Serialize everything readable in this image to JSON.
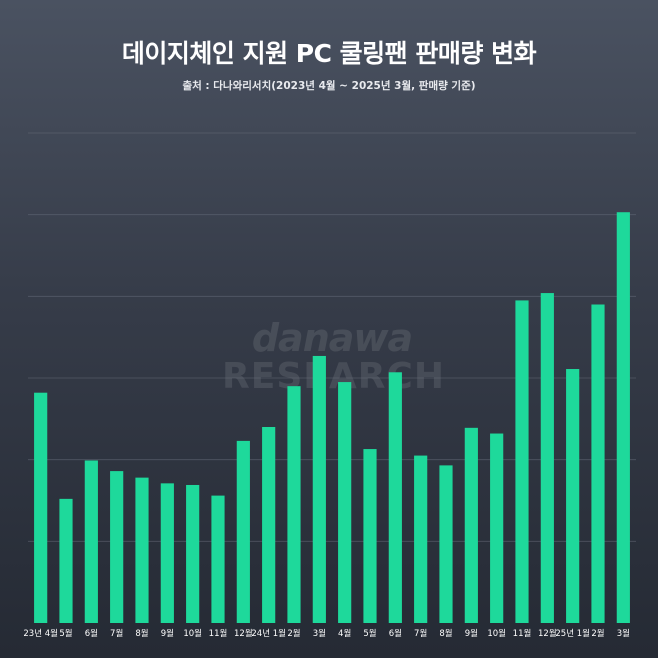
{
  "title": "데이지체인 지원 PC 쿨링팬 판매량 변화",
  "subtitle": "출처 : 다나와리서치(2023년 4월 ~ 2025년 3월, 판매량 기준)",
  "watermark": {
    "top": "danawa",
    "bottom": "RESEARCH"
  },
  "colors": {
    "bar": "#1ed99b",
    "grid": "#6b7280",
    "tick": "#ffffff"
  },
  "chart_data": {
    "type": "bar",
    "title": "데이지체인 지원 PC 쿨링팬 판매량 변화",
    "xlabel": "",
    "ylabel": "",
    "ylim": [
      0,
      60
    ],
    "grid": true,
    "categories": [
      "23년 4월",
      "5월",
      "6월",
      "7월",
      "8월",
      "9월",
      "10월",
      "11월",
      "12월",
      "24년 1월",
      "2월",
      "3월",
      "4월",
      "5월",
      "6월",
      "7월",
      "8월",
      "9월",
      "10월",
      "11월",
      "12월",
      "25년 1월",
      "2월",
      "3월"
    ],
    "values": [
      28.2,
      15.2,
      19.9,
      18.6,
      17.8,
      17.1,
      16.9,
      15.6,
      22.3,
      24.0,
      29.0,
      32.7,
      29.5,
      21.3,
      30.7,
      20.5,
      19.3,
      23.9,
      23.2,
      39.5,
      40.4,
      31.1,
      39.0,
      50.3
    ]
  }
}
